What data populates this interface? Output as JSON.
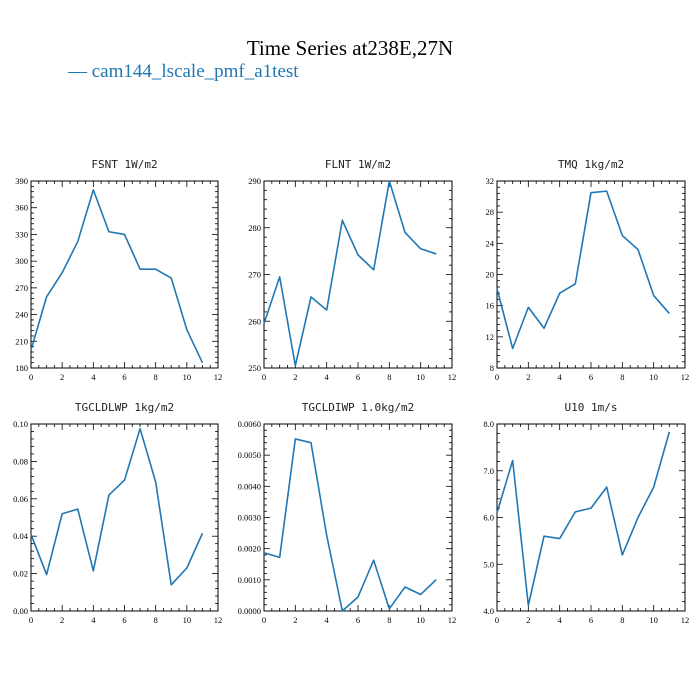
{
  "figure": {
    "title": "Time Series at238E,27N",
    "legend_label": "— cam144_lscale_pmf_a1test",
    "line_color": "#1f77b4"
  },
  "chart_data": [
    {
      "type": "line",
      "title": "FSNT   1W/m2",
      "xlim": [
        0,
        12
      ],
      "ylim": [
        180,
        390
      ],
      "x_ticks": [
        "0",
        "2",
        "4",
        "6",
        "8",
        "10",
        "12"
      ],
      "y_ticks": [
        "180",
        "210",
        "240",
        "270",
        "300",
        "330",
        "360",
        "390"
      ],
      "x": [
        0,
        1,
        2,
        3,
        4,
        5,
        6,
        7,
        8,
        9,
        10,
        11
      ],
      "series": [
        {
          "values": [
            200,
            260,
            287,
            322,
            380,
            333,
            330,
            291,
            291,
            281,
            223,
            186
          ]
        }
      ]
    },
    {
      "type": "line",
      "title": "FLNT   1W/m2",
      "xlim": [
        0,
        12
      ],
      "ylim": [
        250,
        290
      ],
      "x_ticks": [
        "0",
        "2",
        "4",
        "6",
        "8",
        "10",
        "12"
      ],
      "y_ticks": [
        "250",
        "260",
        "270",
        "280",
        "290"
      ],
      "x": [
        0,
        1,
        2,
        3,
        4,
        5,
        6,
        7,
        8,
        9,
        10,
        11
      ],
      "series": [
        {
          "values": [
            259.5,
            269.5,
            250.5,
            265.2,
            262.4,
            281.6,
            274.2,
            271.0,
            290.0,
            279.0,
            275.5,
            274.4
          ]
        }
      ]
    },
    {
      "type": "line",
      "title": "TMQ   1kg/m2",
      "xlim": [
        0,
        12
      ],
      "ylim": [
        8,
        32
      ],
      "x_ticks": [
        "0",
        "2",
        "4",
        "6",
        "8",
        "10",
        "12"
      ],
      "y_ticks": [
        "8",
        "12",
        "16",
        "20",
        "24",
        "28",
        "32"
      ],
      "x": [
        0,
        1,
        2,
        3,
        4,
        5,
        6,
        7,
        8,
        9,
        10,
        11
      ],
      "series": [
        {
          "values": [
            18.2,
            10.5,
            15.8,
            13.1,
            17.6,
            18.8,
            30.5,
            30.7,
            25.0,
            23.2,
            17.3,
            15.0
          ]
        }
      ]
    },
    {
      "type": "line",
      "title": "TGCLDLWP   1kg/m2",
      "xlim": [
        0,
        12
      ],
      "ylim": [
        0,
        0.1
      ],
      "x_ticks": [
        "0",
        "2",
        "4",
        "6",
        "8",
        "10",
        "12"
      ],
      "y_ticks": [
        "0.00",
        "0.02",
        "0.04",
        "0.06",
        "0.08",
        "0.10"
      ],
      "x": [
        0,
        1,
        2,
        3,
        4,
        5,
        6,
        7,
        8,
        9,
        10,
        11
      ],
      "series": [
        {
          "values": [
            0.041,
            0.0195,
            0.052,
            0.0545,
            0.0215,
            0.062,
            0.07,
            0.0975,
            0.069,
            0.014,
            0.023,
            0.0415
          ]
        }
      ]
    },
    {
      "type": "line",
      "title": "TGCLDIWP   1.0kg/m2",
      "xlim": [
        0,
        12
      ],
      "ylim": [
        0,
        0.006
      ],
      "x_ticks": [
        "0",
        "2",
        "4",
        "6",
        "8",
        "10",
        "12"
      ],
      "y_ticks": [
        "0.0000",
        "0.0010",
        "0.0020",
        "0.0030",
        "0.0040",
        "0.0050",
        "0.0060"
      ],
      "x": [
        0,
        1,
        2,
        3,
        4,
        5,
        6,
        7,
        8,
        9,
        10,
        11
      ],
      "series": [
        {
          "values": [
            0.00187,
            0.00172,
            0.00552,
            0.0054,
            0.00243,
            0.0,
            0.00045,
            0.00163,
            7e-05,
            0.00077,
            0.00053,
            0.00101
          ]
        }
      ]
    },
    {
      "type": "line",
      "title": "U10   1m/s",
      "xlim": [
        0,
        12
      ],
      "ylim": [
        4,
        8
      ],
      "x_ticks": [
        "0",
        "2",
        "4",
        "6",
        "8",
        "10",
        "12"
      ],
      "y_ticks": [
        "4.0",
        "5.0",
        "6.0",
        "7.0",
        "8.0"
      ],
      "x": [
        0,
        1,
        2,
        3,
        4,
        5,
        6,
        7,
        8,
        9,
        10,
        11
      ],
      "series": [
        {
          "values": [
            6.1,
            7.22,
            4.12,
            5.6,
            5.55,
            6.12,
            6.2,
            6.65,
            5.2,
            6.0,
            6.65,
            7.83
          ]
        }
      ]
    }
  ]
}
